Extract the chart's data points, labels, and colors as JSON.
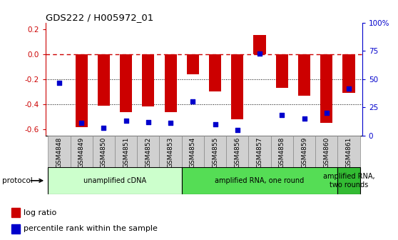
{
  "title": "GDS222 / H005972_01",
  "samples": [
    "GSM4848",
    "GSM4849",
    "GSM4850",
    "GSM4851",
    "GSM4852",
    "GSM4853",
    "GSM4854",
    "GSM4855",
    "GSM4856",
    "GSM4857",
    "GSM4858",
    "GSM4859",
    "GSM4860",
    "GSM4861"
  ],
  "log_ratio": [
    0.0,
    -0.58,
    -0.41,
    -0.46,
    -0.42,
    -0.46,
    -0.16,
    -0.3,
    -0.52,
    0.15,
    -0.27,
    -0.33,
    -0.55,
    -0.31
  ],
  "percentile_rank": [
    47,
    11,
    7,
    13,
    12,
    11,
    30,
    10,
    5,
    73,
    18,
    15,
    20,
    42
  ],
  "bar_color": "#cc0000",
  "dot_color": "#0000cc",
  "ylim_left": [
    -0.65,
    0.25
  ],
  "ylim_right": [
    0,
    100
  ],
  "left_yticks": [
    -0.6,
    -0.4,
    -0.2,
    0.0,
    0.2
  ],
  "right_yticks": [
    0,
    25,
    50,
    75,
    100
  ],
  "hline_y": 0.0,
  "dotted_hlines": [
    -0.2,
    -0.4
  ],
  "protocol_groups": [
    {
      "label": "unamplified cDNA",
      "start": 0,
      "end": 5,
      "color": "#ccffcc"
    },
    {
      "label": "amplified RNA, one round",
      "start": 6,
      "end": 12,
      "color": "#55dd55"
    },
    {
      "label": "amplified RNA,\ntwo rounds",
      "start": 13,
      "end": 13,
      "color": "#33bb33"
    }
  ],
  "legend_items": [
    {
      "color": "#cc0000",
      "label": "log ratio"
    },
    {
      "color": "#0000cc",
      "label": "percentile rank within the sample"
    }
  ],
  "protocol_label": "protocol",
  "background_color": "#ffffff",
  "tick_label_color_left": "#cc0000",
  "tick_label_color_right": "#0000cc",
  "bar_width": 0.55,
  "xlabel_box_color": "#d0d0d0",
  "xlabel_box_edge": "#888888"
}
